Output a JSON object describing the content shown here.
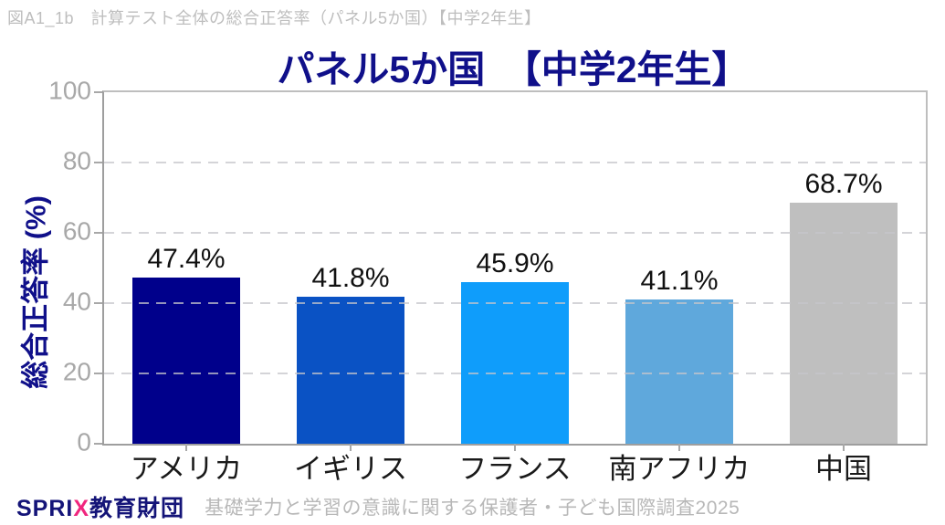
{
  "caption": "図A1_1b　計算テスト全体の総合正答率（パネル5か国）【中学2年生】",
  "chart_data": {
    "type": "bar",
    "title": "パネル5か国　【中学2年生】",
    "ylabel": "総合正答率 (%)",
    "categories": [
      "アメリカ",
      "イギリス",
      "フランス",
      "南アフリカ",
      "中国"
    ],
    "values": [
      47.4,
      41.8,
      45.9,
      41.1,
      68.7
    ],
    "value_labels": [
      "47.4%",
      "41.8%",
      "45.9%",
      "41.1%",
      "68.7%"
    ],
    "bar_colors": [
      "#00008B",
      "#0A52C4",
      "#0F9DFB",
      "#5FA8DC",
      "#BFBFBF"
    ],
    "ylim": [
      0,
      100
    ],
    "yticks": [
      0,
      20,
      40,
      60,
      80,
      100
    ],
    "gridlines_dashed_at": [
      20,
      40,
      60,
      80
    ],
    "legend": "none"
  },
  "footer": {
    "logo_sprix": "SPRI",
    "logo_x": "X",
    "logo_org": "教育財団",
    "source": "基礎学力と学習の意識に関する保護者・子ども国際調査2025"
  },
  "colors": {
    "title_navy": "#10108A",
    "axis_gray": "#9E9E9E",
    "frame_gray": "#BEBEBE",
    "tick_label_gray": "#A8A8A8",
    "caption_gray": "#BEBEBE",
    "value_label_black": "#111111",
    "logo_navy": "#141478",
    "logo_pink": "#F0267E"
  }
}
